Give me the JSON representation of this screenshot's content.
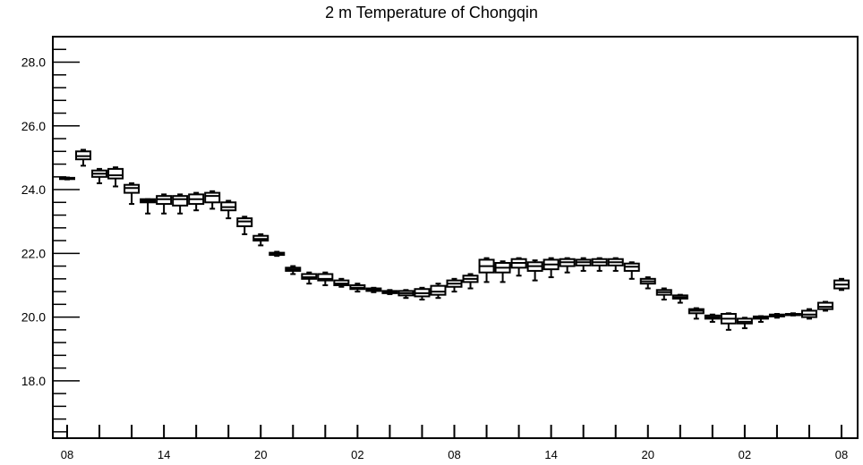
{
  "chart_data": {
    "type": "box",
    "title": "2 m Temperature of Chongqin",
    "xlabel": "",
    "ylabel": "",
    "ylim": [
      16.2,
      28.8
    ],
    "y_ticks": [
      "18.0",
      "20.0",
      "22.0",
      "24.0",
      "26.0",
      "28.0"
    ],
    "x_tick_labels": [
      "08",
      "14",
      "20",
      "02",
      "08",
      "14",
      "20",
      "02",
      "08"
    ],
    "x_tick_label_steps": [
      0,
      6,
      12,
      18,
      24,
      30,
      36,
      42,
      48
    ],
    "grid": false,
    "legend": "none",
    "boxes": [
      {
        "step": 0,
        "min": 24.32,
        "q1": 24.33,
        "median": 24.35,
        "q3": 24.37,
        "max": 24.38
      },
      {
        "step": 1,
        "min": 24.75,
        "q1": 24.95,
        "median": 25.05,
        "q3": 25.2,
        "max": 25.25
      },
      {
        "step": 2,
        "min": 24.2,
        "q1": 24.4,
        "median": 24.5,
        "q3": 24.6,
        "max": 24.65
      },
      {
        "step": 3,
        "min": 24.1,
        "q1": 24.35,
        "median": 24.45,
        "q3": 24.65,
        "max": 24.7
      },
      {
        "step": 4,
        "min": 23.55,
        "q1": 23.9,
        "median": 24.05,
        "q3": 24.15,
        "max": 24.2
      },
      {
        "step": 5,
        "min": 23.25,
        "q1": 23.6,
        "median": 23.65,
        "q3": 23.7,
        "max": 23.7
      },
      {
        "step": 6,
        "min": 23.25,
        "q1": 23.55,
        "median": 23.7,
        "q3": 23.8,
        "max": 23.85
      },
      {
        "step": 7,
        "min": 23.25,
        "q1": 23.5,
        "median": 23.7,
        "q3": 23.8,
        "max": 23.85
      },
      {
        "step": 8,
        "min": 23.35,
        "q1": 23.55,
        "median": 23.7,
        "q3": 23.85,
        "max": 23.9
      },
      {
        "step": 9,
        "min": 23.4,
        "q1": 23.6,
        "median": 23.8,
        "q3": 23.9,
        "max": 23.95
      },
      {
        "step": 10,
        "min": 23.1,
        "q1": 23.35,
        "median": 23.45,
        "q3": 23.6,
        "max": 23.65
      },
      {
        "step": 11,
        "min": 22.6,
        "q1": 22.85,
        "median": 23.0,
        "q3": 23.1,
        "max": 23.15
      },
      {
        "step": 12,
        "min": 22.25,
        "q1": 22.4,
        "median": 22.45,
        "q3": 22.55,
        "max": 22.6
      },
      {
        "step": 13,
        "min": 21.92,
        "q1": 21.95,
        "median": 22.0,
        "q3": 22.02,
        "max": 22.05
      },
      {
        "step": 14,
        "min": 21.35,
        "q1": 21.45,
        "median": 21.5,
        "q3": 21.55,
        "max": 21.6
      },
      {
        "step": 15,
        "min": 21.05,
        "q1": 21.2,
        "median": 21.25,
        "q3": 21.35,
        "max": 21.4
      },
      {
        "step": 16,
        "min": 21.0,
        "q1": 21.15,
        "median": 21.2,
        "q3": 21.35,
        "max": 21.4
      },
      {
        "step": 17,
        "min": 20.95,
        "q1": 21.0,
        "median": 21.05,
        "q3": 21.15,
        "max": 21.2
      },
      {
        "step": 18,
        "min": 20.8,
        "q1": 20.88,
        "median": 20.92,
        "q3": 21.0,
        "max": 21.05
      },
      {
        "step": 19,
        "min": 20.78,
        "q1": 20.82,
        "median": 20.85,
        "q3": 20.9,
        "max": 20.92
      },
      {
        "step": 20,
        "min": 20.72,
        "q1": 20.75,
        "median": 20.78,
        "q3": 20.82,
        "max": 20.85
      },
      {
        "step": 21,
        "min": 20.6,
        "q1": 20.68,
        "median": 20.75,
        "q3": 20.82,
        "max": 20.85
      },
      {
        "step": 22,
        "min": 20.55,
        "q1": 20.65,
        "median": 20.75,
        "q3": 20.88,
        "max": 20.92
      },
      {
        "step": 23,
        "min": 20.6,
        "q1": 20.7,
        "median": 20.8,
        "q3": 20.98,
        "max": 21.05
      },
      {
        "step": 24,
        "min": 20.8,
        "q1": 20.95,
        "median": 21.05,
        "q3": 21.15,
        "max": 21.2
      },
      {
        "step": 25,
        "min": 20.9,
        "q1": 21.1,
        "median": 21.2,
        "q3": 21.3,
        "max": 21.35
      },
      {
        "step": 26,
        "min": 21.1,
        "q1": 21.4,
        "median": 21.6,
        "q3": 21.8,
        "max": 21.85
      },
      {
        "step": 27,
        "min": 21.1,
        "q1": 21.4,
        "median": 21.55,
        "q3": 21.7,
        "max": 21.75
      },
      {
        "step": 28,
        "min": 21.3,
        "q1": 21.55,
        "median": 21.7,
        "q3": 21.82,
        "max": 21.85
      },
      {
        "step": 29,
        "min": 21.15,
        "q1": 21.45,
        "median": 21.6,
        "q3": 21.72,
        "max": 21.78
      },
      {
        "step": 30,
        "min": 21.25,
        "q1": 21.5,
        "median": 21.65,
        "q3": 21.8,
        "max": 21.85
      },
      {
        "step": 31,
        "min": 21.4,
        "q1": 21.6,
        "median": 21.72,
        "q3": 21.82,
        "max": 21.85
      },
      {
        "step": 32,
        "min": 21.45,
        "q1": 21.62,
        "median": 21.72,
        "q3": 21.8,
        "max": 21.85
      },
      {
        "step": 33,
        "min": 21.45,
        "q1": 21.62,
        "median": 21.72,
        "q3": 21.82,
        "max": 21.85
      },
      {
        "step": 34,
        "min": 21.45,
        "q1": 21.62,
        "median": 21.72,
        "q3": 21.82,
        "max": 21.85
      },
      {
        "step": 35,
        "min": 21.2,
        "q1": 21.45,
        "median": 21.58,
        "q3": 21.68,
        "max": 21.72
      },
      {
        "step": 36,
        "min": 20.9,
        "q1": 21.05,
        "median": 21.12,
        "q3": 21.2,
        "max": 21.25
      },
      {
        "step": 37,
        "min": 20.55,
        "q1": 20.7,
        "median": 20.78,
        "q3": 20.85,
        "max": 20.9
      },
      {
        "step": 38,
        "min": 20.45,
        "q1": 20.58,
        "median": 20.62,
        "q3": 20.68,
        "max": 20.7
      },
      {
        "step": 39,
        "min": 19.95,
        "q1": 20.12,
        "median": 20.2,
        "q3": 20.25,
        "max": 20.28
      },
      {
        "step": 40,
        "min": 19.85,
        "q1": 19.95,
        "median": 20.0,
        "q3": 20.05,
        "max": 20.08
      },
      {
        "step": 41,
        "min": 19.6,
        "q1": 19.8,
        "median": 19.95,
        "q3": 20.1,
        "max": 20.12
      },
      {
        "step": 42,
        "min": 19.65,
        "q1": 19.8,
        "median": 19.85,
        "q3": 19.95,
        "max": 19.98
      },
      {
        "step": 43,
        "min": 19.85,
        "q1": 19.95,
        "median": 20.0,
        "q3": 20.02,
        "max": 20.03
      },
      {
        "step": 44,
        "min": 19.98,
        "q1": 20.02,
        "median": 20.05,
        "q3": 20.08,
        "max": 20.1
      },
      {
        "step": 45,
        "min": 20.05,
        "q1": 20.06,
        "median": 20.08,
        "q3": 20.1,
        "max": 20.12
      },
      {
        "step": 46,
        "min": 19.95,
        "q1": 20.0,
        "median": 20.08,
        "q3": 20.2,
        "max": 20.25
      },
      {
        "step": 47,
        "min": 20.2,
        "q1": 20.25,
        "median": 20.32,
        "q3": 20.45,
        "max": 20.48
      },
      {
        "step": 48,
        "min": 20.85,
        "q1": 20.9,
        "median": 21.02,
        "q3": 21.15,
        "max": 21.2
      }
    ]
  }
}
